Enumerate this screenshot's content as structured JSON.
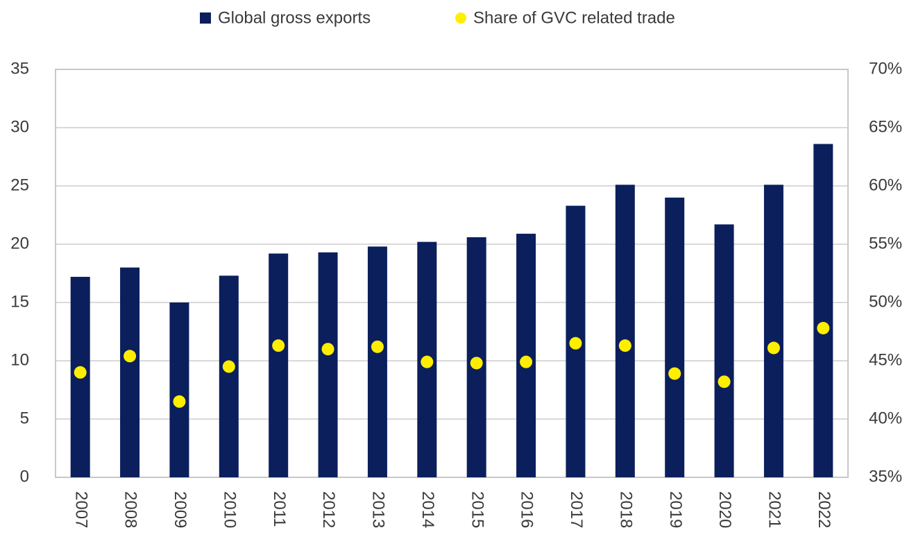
{
  "chart_data": {
    "type": "bar_dot",
    "categories": [
      "2007",
      "2008",
      "2009",
      "2010",
      "2011",
      "2012",
      "2013",
      "2014",
      "2015",
      "2016",
      "2017",
      "2018",
      "2019",
      "2020",
      "2021",
      "2022"
    ],
    "series": [
      {
        "name": "Global gross exports",
        "color": "#0b1f5c",
        "type": "bar",
        "values": [
          17.2,
          18.0,
          15.0,
          17.3,
          19.2,
          19.3,
          19.8,
          20.2,
          20.6,
          20.9,
          23.3,
          25.1,
          24.0,
          21.7,
          25.1,
          28.6
        ]
      },
      {
        "name": "Share of GVC related trade",
        "color": "#ffee00",
        "type": "scatter",
        "axis": "y2",
        "values": [
          44.0,
          45.4,
          41.5,
          44.5,
          46.3,
          46.0,
          46.2,
          44.9,
          44.8,
          44.9,
          46.5,
          46.3,
          43.9,
          43.2,
          46.1,
          47.8
        ]
      }
    ],
    "ylim": [
      0,
      35
    ],
    "yticks": [
      0,
      5,
      10,
      15,
      20,
      25,
      30,
      35
    ],
    "y2lim": [
      35,
      70
    ],
    "y2ticks": [
      {
        "value": 35,
        "label": "35%"
      },
      {
        "value": 40,
        "label": "40%"
      },
      {
        "value": 45,
        "label": "45%"
      },
      {
        "value": 50,
        "label": "50%"
      },
      {
        "value": 55,
        "label": "55%"
      },
      {
        "value": 60,
        "label": "60%"
      },
      {
        "value": 65,
        "label": "65%"
      },
      {
        "value": 70,
        "label": "70%"
      }
    ],
    "grid": true,
    "legend": "top"
  }
}
